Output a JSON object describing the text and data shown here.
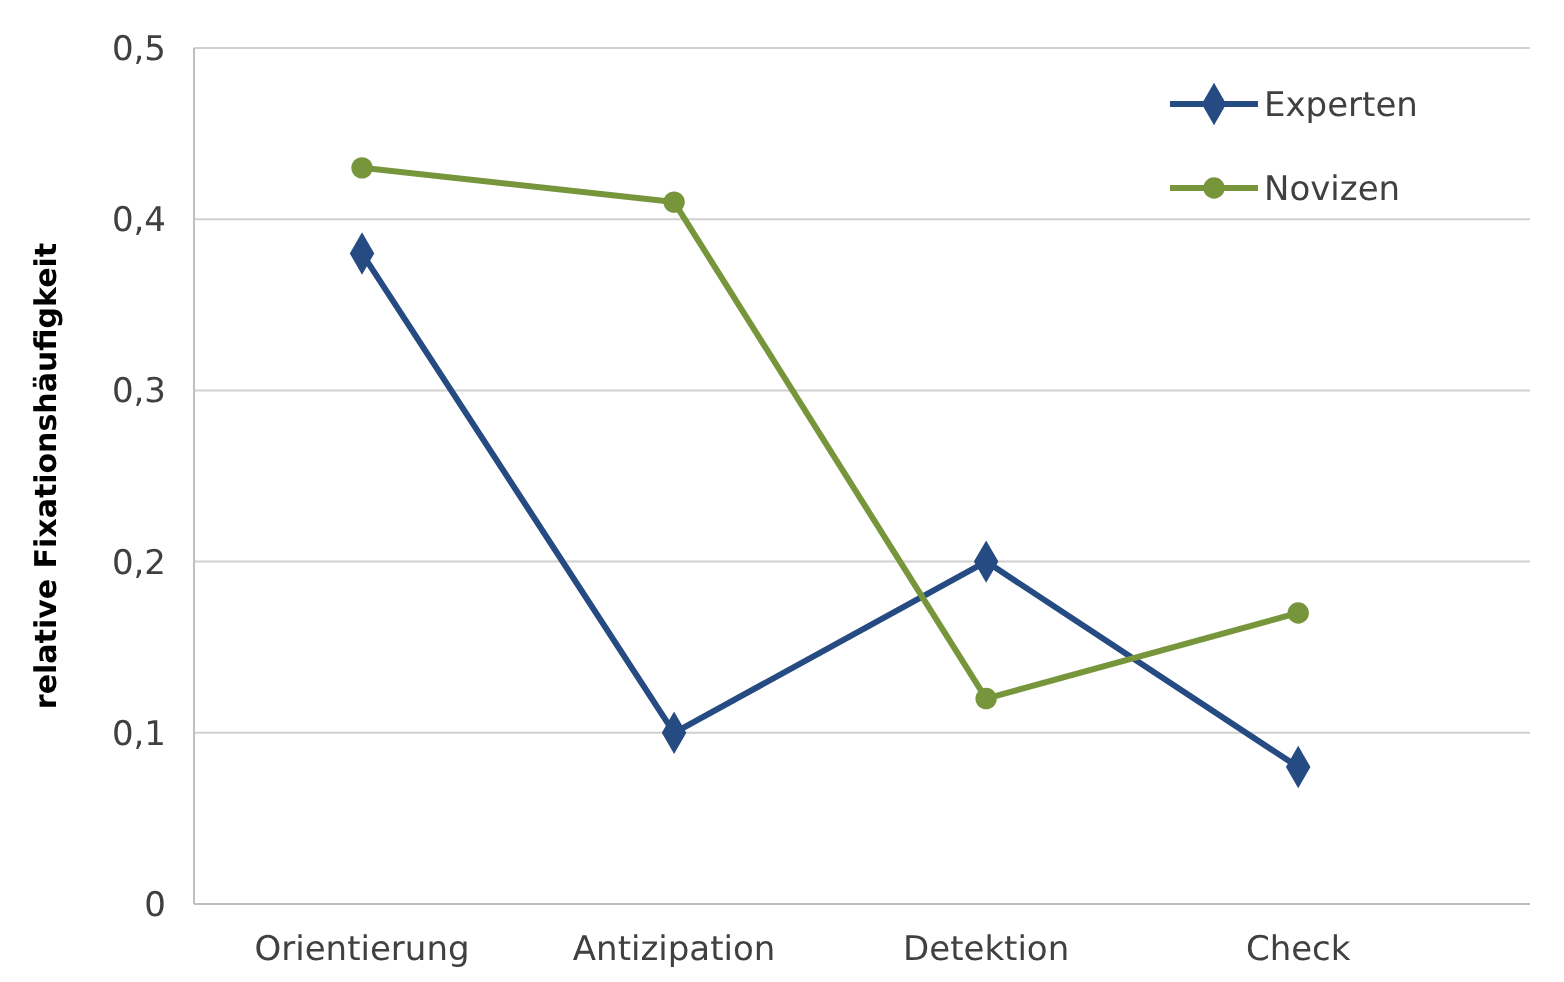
{
  "chart_data": {
    "type": "line",
    "ylabel": "relative Fixationshäufigkeit",
    "categories": [
      "Orientierung",
      "Antizipation",
      "Detektion",
      "Check"
    ],
    "series": [
      {
        "name": "Experten",
        "color": "#254b82",
        "marker": "diamond",
        "values": [
          0.38,
          0.1,
          0.2,
          0.08
        ]
      },
      {
        "name": "Novizen",
        "color": "#77963c",
        "marker": "circle",
        "values": [
          0.43,
          0.41,
          0.12,
          0.17
        ]
      }
    ],
    "ylim": [
      0,
      0.5
    ],
    "yticks": [
      0,
      {
        "value": 0.1,
        "label": "0,1"
      },
      {
        "value": 0.2,
        "label": "0,2"
      },
      {
        "value": 0.3,
        "label": "0,3"
      },
      {
        "value": 0.4,
        "label": "0,4"
      },
      {
        "value": 0.5,
        "label": "0,5"
      }
    ],
    "grid": "y",
    "legend": "top right"
  }
}
